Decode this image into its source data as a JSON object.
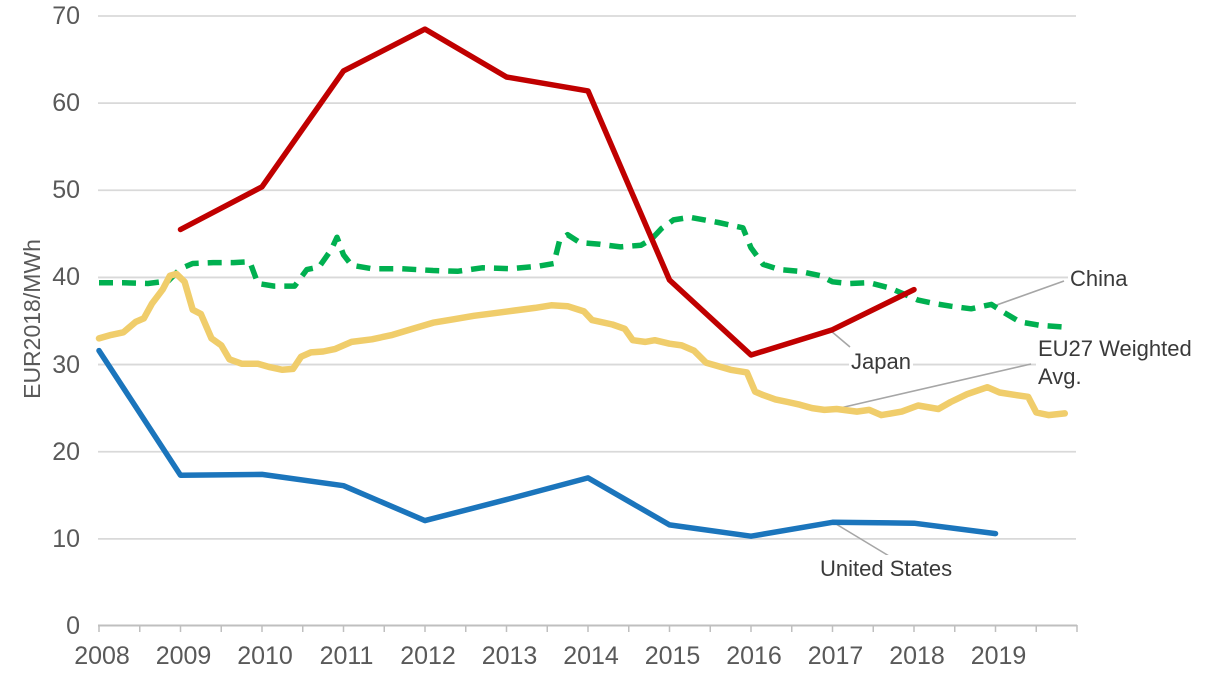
{
  "chart_data": {
    "type": "line",
    "title": "",
    "xlabel": "",
    "ylabel": "EUR2018/MWh",
    "x_range": [
      2008,
      2020
    ],
    "ylim": [
      0,
      70
    ],
    "y_ticks": [
      0,
      10,
      20,
      30,
      40,
      50,
      60,
      70
    ],
    "x_tick_labels": [
      "2008",
      "2009",
      "2010",
      "2011",
      "2012",
      "2013",
      "2014",
      "2015",
      "2016",
      "2017",
      "2018",
      "2019"
    ],
    "grid": "horizontal",
    "legend": "inline-labels-with-callouts",
    "axis_tick_color": "#595959",
    "gridline_color": "#D9D9D9",
    "axis_line_color": "#BFBFBF",
    "callout_color": "#A6A6A6",
    "series": [
      {
        "id": "china",
        "name": "China",
        "color": "#00B050",
        "style": "dashed",
        "points": [
          [
            2008.0,
            39.4
          ],
          [
            2008.3,
            39.4
          ],
          [
            2008.6,
            39.3
          ],
          [
            2008.85,
            39.6
          ],
          [
            2009.0,
            41.0
          ],
          [
            2009.15,
            41.6
          ],
          [
            2009.4,
            41.7
          ],
          [
            2009.65,
            41.7
          ],
          [
            2009.85,
            41.8
          ],
          [
            2009.95,
            39.3
          ],
          [
            2010.15,
            39.0
          ],
          [
            2010.4,
            39.0
          ],
          [
            2010.55,
            40.9
          ],
          [
            2010.7,
            41.2
          ],
          [
            2010.85,
            43.2
          ],
          [
            2010.92,
            44.6
          ],
          [
            2011.0,
            42.6
          ],
          [
            2011.1,
            41.4
          ],
          [
            2011.35,
            41.0
          ],
          [
            2011.7,
            41.0
          ],
          [
            2012.1,
            40.8
          ],
          [
            2012.4,
            40.7
          ],
          [
            2012.7,
            41.1
          ],
          [
            2013.05,
            41.0
          ],
          [
            2013.4,
            41.3
          ],
          [
            2013.58,
            41.6
          ],
          [
            2013.65,
            44.2
          ],
          [
            2013.75,
            44.9
          ],
          [
            2013.9,
            44.0
          ],
          [
            2014.15,
            43.8
          ],
          [
            2014.4,
            43.5
          ],
          [
            2014.65,
            43.7
          ],
          [
            2014.78,
            44.4
          ],
          [
            2014.9,
            45.6
          ],
          [
            2015.05,
            46.6
          ],
          [
            2015.25,
            46.9
          ],
          [
            2015.6,
            46.3
          ],
          [
            2015.9,
            45.7
          ],
          [
            2016.0,
            43.4
          ],
          [
            2016.15,
            41.5
          ],
          [
            2016.35,
            40.9
          ],
          [
            2016.6,
            40.7
          ],
          [
            2016.85,
            40.2
          ],
          [
            2017.0,
            39.5
          ],
          [
            2017.2,
            39.3
          ],
          [
            2017.45,
            39.4
          ],
          [
            2017.7,
            38.8
          ],
          [
            2017.95,
            37.8
          ],
          [
            2018.05,
            37.4
          ],
          [
            2018.25,
            37.0
          ],
          [
            2018.45,
            36.7
          ],
          [
            2018.7,
            36.4
          ],
          [
            2018.95,
            36.9
          ],
          [
            2019.1,
            36.0
          ],
          [
            2019.3,
            34.9
          ],
          [
            2019.55,
            34.5
          ],
          [
            2019.85,
            34.3
          ]
        ]
      },
      {
        "id": "eu27",
        "name": "EU27 Weighted Avg.",
        "color": "#F0CD6B",
        "style": "solid",
        "points": [
          [
            2008.0,
            33.0
          ],
          [
            2008.15,
            33.4
          ],
          [
            2008.3,
            33.7
          ],
          [
            2008.45,
            34.9
          ],
          [
            2008.55,
            35.3
          ],
          [
            2008.65,
            37.0
          ],
          [
            2008.78,
            38.6
          ],
          [
            2008.87,
            40.2
          ],
          [
            2008.95,
            40.4
          ],
          [
            2009.05,
            39.5
          ],
          [
            2009.15,
            36.3
          ],
          [
            2009.25,
            35.8
          ],
          [
            2009.38,
            33.0
          ],
          [
            2009.5,
            32.2
          ],
          [
            2009.6,
            30.6
          ],
          [
            2009.75,
            30.1
          ],
          [
            2009.95,
            30.1
          ],
          [
            2010.1,
            29.7
          ],
          [
            2010.25,
            29.4
          ],
          [
            2010.38,
            29.5
          ],
          [
            2010.48,
            30.9
          ],
          [
            2010.6,
            31.4
          ],
          [
            2010.75,
            31.5
          ],
          [
            2010.9,
            31.8
          ],
          [
            2011.1,
            32.6
          ],
          [
            2011.35,
            32.9
          ],
          [
            2011.6,
            33.4
          ],
          [
            2011.85,
            34.1
          ],
          [
            2012.1,
            34.8
          ],
          [
            2012.35,
            35.2
          ],
          [
            2012.6,
            35.6
          ],
          [
            2012.85,
            35.9
          ],
          [
            2013.1,
            36.2
          ],
          [
            2013.35,
            36.5
          ],
          [
            2013.55,
            36.8
          ],
          [
            2013.75,
            36.7
          ],
          [
            2013.95,
            36.1
          ],
          [
            2014.05,
            35.1
          ],
          [
            2014.3,
            34.6
          ],
          [
            2014.45,
            34.1
          ],
          [
            2014.55,
            32.8
          ],
          [
            2014.7,
            32.6
          ],
          [
            2014.82,
            32.8
          ],
          [
            2015.0,
            32.4
          ],
          [
            2015.15,
            32.2
          ],
          [
            2015.3,
            31.6
          ],
          [
            2015.45,
            30.2
          ],
          [
            2015.6,
            29.8
          ],
          [
            2015.75,
            29.4
          ],
          [
            2015.95,
            29.1
          ],
          [
            2016.05,
            26.9
          ],
          [
            2016.15,
            26.5
          ],
          [
            2016.3,
            26.0
          ],
          [
            2016.45,
            25.7
          ],
          [
            2016.6,
            25.4
          ],
          [
            2016.75,
            25.0
          ],
          [
            2016.9,
            24.8
          ],
          [
            2017.05,
            24.9
          ],
          [
            2017.3,
            24.6
          ],
          [
            2017.45,
            24.8
          ],
          [
            2017.6,
            24.2
          ],
          [
            2017.85,
            24.6
          ],
          [
            2018.05,
            25.3
          ],
          [
            2018.3,
            24.9
          ],
          [
            2018.45,
            25.7
          ],
          [
            2018.65,
            26.6
          ],
          [
            2018.9,
            27.4
          ],
          [
            2019.05,
            26.8
          ],
          [
            2019.25,
            26.5
          ],
          [
            2019.4,
            26.3
          ],
          [
            2019.5,
            24.5
          ],
          [
            2019.65,
            24.2
          ],
          [
            2019.85,
            24.4
          ]
        ]
      },
      {
        "id": "japan",
        "name": "Japan",
        "color": "#C00000",
        "style": "solid",
        "points": [
          [
            2009,
            45.5
          ],
          [
            2010,
            50.4
          ],
          [
            2011,
            63.7
          ],
          [
            2012,
            68.5
          ],
          [
            2013,
            63.0
          ],
          [
            2014,
            61.4
          ],
          [
            2015,
            39.7
          ],
          [
            2016,
            31.1
          ],
          [
            2017,
            34.0
          ],
          [
            2018,
            38.6
          ]
        ]
      },
      {
        "id": "us",
        "name": "United States",
        "color": "#1B75BC",
        "style": "solid",
        "points": [
          [
            2008,
            31.6
          ],
          [
            2009,
            17.3
          ],
          [
            2010,
            17.4
          ],
          [
            2011,
            16.1
          ],
          [
            2012,
            12.1
          ],
          [
            2013,
            14.5
          ],
          [
            2014,
            17.0
          ],
          [
            2015,
            11.6
          ],
          [
            2016,
            10.3
          ],
          [
            2017,
            11.9
          ],
          [
            2018,
            11.8
          ],
          [
            2019,
            10.6
          ]
        ]
      }
    ],
    "annotations": [
      "China",
      "Japan",
      "EU27 Weighted Avg.",
      "United States"
    ]
  }
}
